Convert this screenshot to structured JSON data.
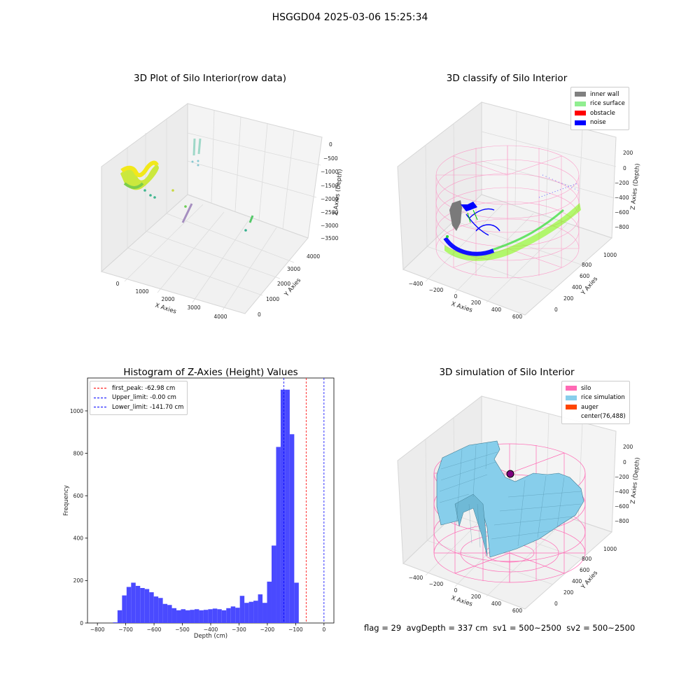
{
  "suptitle": "HSGGD04 2025-03-06 15:25:34",
  "footer": {
    "flag": "flag = 29",
    "avg_depth": "avgDepth = 337 cm",
    "sv1": "sv1 = 500~2500",
    "sv2": "sv2 = 500~2500"
  },
  "panels": {
    "raw": {
      "title": "3D Plot of Silo Interior(row data)",
      "xlabel": "X Axies",
      "ylabel": "Y Axies",
      "zlabel": "Z Axies (Depth)",
      "xticks": [
        "0",
        "1000",
        "2000",
        "3000",
        "4000"
      ],
      "yticks": [
        "0",
        "1000",
        "2000",
        "3000",
        "4000"
      ],
      "zticks": [
        "0",
        "−500",
        "−1000",
        "−1500",
        "−2000",
        "−2500",
        "−3000",
        "−3500"
      ]
    },
    "classify": {
      "title": "3D classify of Silo Interior",
      "xlabel": "X Axies",
      "ylabel": "Y Axies",
      "zlabel": "Z Axies (Depth)",
      "xticks": [
        "−400",
        "−200",
        "0",
        "200",
        "400",
        "600"
      ],
      "yticks": [
        "0",
        "200",
        "400",
        "600",
        "800",
        "1000"
      ],
      "zticks": [
        "200",
        "0",
        "−200",
        "−400",
        "−600",
        "−800"
      ],
      "legend": [
        {
          "label": "inner wall",
          "color": "#808080"
        },
        {
          "label": "rice surface",
          "color": "#90ee90"
        },
        {
          "label": "obstacle",
          "color": "#ff0000"
        },
        {
          "label": "noise",
          "color": "#0000ff"
        }
      ]
    },
    "simulation": {
      "title": "3D simulation of Silo Interior",
      "xlabel": "X Axies",
      "ylabel": "Y Axies",
      "zlabel": "Z Axies (Depth)",
      "xticks": [
        "−400",
        "−200",
        "0",
        "200",
        "400",
        "600"
      ],
      "yticks": [
        "0",
        "200",
        "400",
        "600",
        "800",
        "1000"
      ],
      "zticks": [
        "200",
        "0",
        "−200",
        "−400",
        "−600",
        "−800"
      ],
      "legend": [
        {
          "label": "silo",
          "color": "#ff69b4"
        },
        {
          "label": "rice simulation",
          "color": "#87ceeb"
        },
        {
          "label": "auger",
          "color": "#ff4500"
        },
        {
          "label": "center(76,488)",
          "color": ""
        }
      ]
    }
  },
  "chart_data": [
    {
      "type": "bar",
      "title": "Histogram of Z-Axies (Height) Values",
      "xlabel": "Depth (cm)",
      "ylabel": "Frequency",
      "xlim": [
        -835,
        35
      ],
      "ylim": [
        0,
        1155
      ],
      "xticks": [
        -800,
        -700,
        -600,
        -500,
        -400,
        -300,
        -200,
        -100,
        0
      ],
      "xtick_labels": [
        "−800",
        "−700",
        "−600",
        "−500",
        "−400",
        "−300",
        "−200",
        "−100",
        "0"
      ],
      "yticks": [
        0,
        200,
        400,
        600,
        800,
        1000
      ],
      "bar_color": "#4a4aff",
      "bin_start": -745,
      "bin_width": 16,
      "values": [
        3,
        60,
        130,
        170,
        190,
        175,
        165,
        160,
        145,
        125,
        118,
        90,
        85,
        70,
        60,
        65,
        60,
        62,
        65,
        60,
        62,
        65,
        68,
        65,
        60,
        70,
        78,
        72,
        128,
        95,
        100,
        105,
        135,
        95,
        195,
        365,
        830,
        1100,
        1100,
        890,
        190
      ],
      "vlines": [
        {
          "x": -62.98,
          "color": "#ff0000",
          "label": "first_peak: -62.98 cm"
        },
        {
          "x": -0.0,
          "color": "#0000ff",
          "label": "Upper_limit: -0.00 cm"
        },
        {
          "x": -141.7,
          "color": "#0000ff",
          "label": "Lower_limit: -141.70 cm"
        }
      ],
      "grid": false,
      "legend_position": "top-left"
    }
  ]
}
